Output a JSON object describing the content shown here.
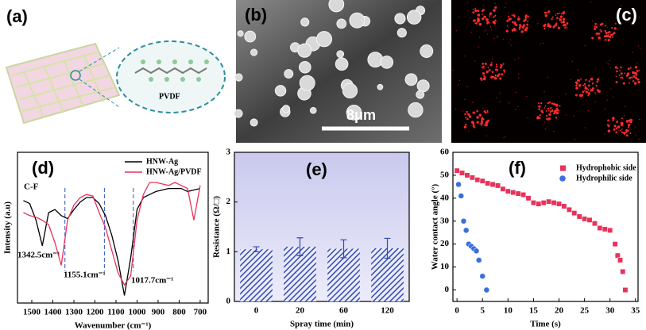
{
  "panels": [
    {
      "label": "(a)",
      "molecule": "PVDF"
    },
    {
      "label": "(b)",
      "scale_bar": "8μm"
    },
    {
      "label": "(c)"
    }
  ],
  "chart_data": [
    {
      "type": "line",
      "panel_label": "(d)",
      "xlabel": "Wavenumber (cm⁻¹)",
      "ylabel": "Intensity (a.u)",
      "x": [
        1540,
        1510,
        1480,
        1450,
        1420,
        1390,
        1360,
        1330,
        1300,
        1270,
        1240,
        1210,
        1180,
        1150,
        1120,
        1090,
        1060,
        1030,
        1000,
        970,
        940,
        910,
        880,
        850,
        820,
        790,
        760,
        730,
        700
      ],
      "series": [
        {
          "name": "HNW-Ag",
          "color": "#000000",
          "values": [
            68,
            66,
            55,
            38,
            60,
            62,
            58,
            56,
            62,
            67,
            70,
            70,
            66,
            58,
            45,
            28,
            5,
            30,
            62,
            70,
            72,
            74,
            75,
            76,
            76,
            76,
            74,
            75,
            76
          ]
        },
        {
          "name": "HNW-Ag/PVDF",
          "color": "#e8325a",
          "values": [
            60,
            58,
            57,
            55,
            52,
            40,
            25,
            55,
            65,
            70,
            72,
            71,
            60,
            50,
            35,
            20,
            12,
            18,
            55,
            72,
            80,
            80,
            79,
            78,
            80,
            78,
            76,
            55,
            78
          ]
        }
      ],
      "xlim": [
        1568,
        662
      ],
      "ylim": [
        0,
        100
      ],
      "xticks": [
        1500,
        1400,
        1300,
        1200,
        1100,
        1000,
        900,
        800,
        700
      ],
      "annotations": [
        "C-F"
      ],
      "markers": [
        {
          "value": 1342.5,
          "label": "1342.5cm⁻¹"
        },
        {
          "value": 1155.1,
          "label": "1155.1cm⁻¹"
        },
        {
          "value": 1017.7,
          "label": "1017.7cm⁻¹"
        }
      ],
      "legend": "upper right"
    },
    {
      "type": "bar",
      "panel_label": "(e)",
      "xlabel": "Spray time (min)",
      "ylabel": "Resistance (Ω/□)",
      "categories": [
        "0",
        "20",
        "60",
        "120"
      ],
      "values": [
        1.05,
        1.1,
        1.06,
        1.07
      ],
      "errors": [
        0.05,
        0.18,
        0.18,
        0.2
      ],
      "color": "#3848b0",
      "ylim": [
        0,
        3
      ],
      "yticks": [
        0,
        1,
        2,
        3
      ]
    },
    {
      "type": "scatter",
      "panel_label": "(f)",
      "xlabel": "Time (s)",
      "ylabel": "Water contact angle (°)",
      "series": [
        {
          "name": "Hydrophobic side",
          "color": "#e8325a",
          "marker": "square",
          "x": [
            0,
            1,
            2,
            3,
            4,
            5,
            6,
            7,
            8,
            9,
            10,
            11,
            12,
            13,
            14,
            15,
            16,
            17,
            18,
            19,
            20,
            21,
            22,
            23,
            24,
            25,
            26,
            27,
            28,
            29,
            30,
            31,
            31.5,
            32,
            32.5,
            33
          ],
          "values": [
            52,
            51,
            50,
            49,
            48,
            47.5,
            46.5,
            46,
            45.5,
            44,
            43,
            42.5,
            42,
            41.5,
            40,
            38,
            37.5,
            38,
            38.5,
            38,
            37.5,
            36.5,
            35,
            33.5,
            32,
            31,
            30.5,
            29,
            27,
            26.5,
            26,
            20,
            15,
            13,
            8,
            0
          ]
        },
        {
          "name": "Hydrophilic side",
          "color": "#3a6fe0",
          "marker": "circle",
          "x": [
            0.3,
            0.8,
            1.3,
            1.8,
            2.3,
            2.8,
            3.3,
            3.8,
            4.3,
            5,
            5.8
          ],
          "values": [
            46,
            41,
            30,
            26,
            20,
            19,
            18,
            17,
            13,
            6,
            0
          ]
        }
      ],
      "xlim": [
        -0.8,
        35.5
      ],
      "ylim": [
        -5,
        60
      ],
      "xticks": [
        0,
        5,
        10,
        15,
        20,
        25,
        30,
        35
      ],
      "yticks": [
        0,
        10,
        20,
        30,
        40,
        50,
        60
      ],
      "legend": "upper right"
    }
  ]
}
